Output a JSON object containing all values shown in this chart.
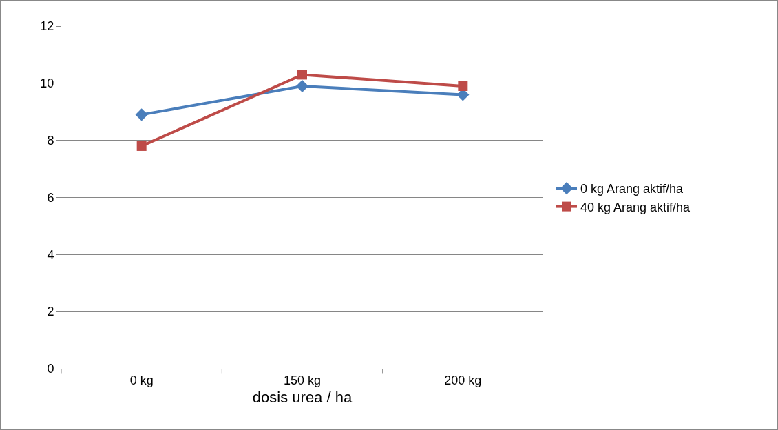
{
  "chart_data": {
    "type": "line",
    "xlabel": "dosis urea / ha",
    "categories": [
      "0 kg",
      "150 kg",
      "200 kg"
    ],
    "series": [
      {
        "name": "0 kg Arang aktif/ha",
        "color": "#4a7ebb",
        "values": [
          8.9,
          9.9,
          9.6
        ],
        "marker": "diamond"
      },
      {
        "name": "40 kg Arang aktif/ha",
        "color": "#be4b48",
        "values": [
          7.8,
          10.3,
          9.9
        ],
        "marker": "square"
      }
    ],
    "ylim": [
      0,
      12
    ],
    "yticks": [
      0,
      2,
      4,
      6,
      8,
      10,
      12
    ],
    "grid": "y",
    "legend": "right",
    "line_style": "solid"
  }
}
